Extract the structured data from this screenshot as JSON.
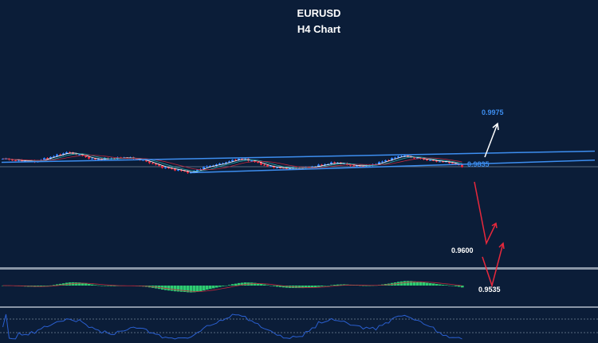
{
  "chart_data": {
    "type": "candlestick",
    "title": "EURUSD",
    "subtitle": "H4 Chart",
    "symbol": "EURUSD",
    "timeframe": "H4",
    "price_path_waypoints": [
      [
        0,
        0.9965
      ],
      [
        4,
        0.9922
      ],
      [
        10,
        0.9889
      ],
      [
        14,
        0.9987
      ],
      [
        20,
        1.0139
      ],
      [
        24,
        1.0074
      ],
      [
        28,
        0.9954
      ],
      [
        33,
        0.9965
      ],
      [
        39,
        0.9998
      ],
      [
        44,
        0.9922
      ],
      [
        50,
        0.9737
      ],
      [
        59,
        0.9585
      ],
      [
        63,
        0.9737
      ],
      [
        68,
        0.9824
      ],
      [
        74,
        0.9965
      ],
      [
        78,
        0.9911
      ],
      [
        83,
        0.9759
      ],
      [
        88,
        0.9705
      ],
      [
        95,
        0.9716
      ],
      [
        103,
        0.9846
      ],
      [
        105,
        0.9857
      ],
      [
        110,
        0.977
      ],
      [
        115,
        0.9781
      ],
      [
        119,
        0.9889
      ],
      [
        125,
        1.0052
      ],
      [
        130,
        0.9976
      ],
      [
        135,
        0.9911
      ],
      [
        140,
        0.9868
      ],
      [
        144,
        0.9759
      ]
    ],
    "horizontal_level": 0.9748,
    "trendlines": [
      {
        "from": [
          0,
          0.9868
        ],
        "to": [
          186,
          1.0172
        ]
      },
      {
        "from": [
          59,
          0.9585
        ],
        "to": [
          186,
          0.9926
        ]
      }
    ],
    "annotations": [
      {
        "text": "0.9975",
        "color": "#3d8ef0"
      },
      {
        "text": "0.9835",
        "color": "#3d8ef0"
      },
      {
        "text": "0.9600",
        "color": "#ffffff"
      },
      {
        "text": "0.9535",
        "color": "#ffffff"
      }
    ],
    "indicators": [
      "moving averages",
      "MACD histogram with signal",
      "RSI"
    ],
    "grid": false,
    "colors": {
      "background": "#0b1d38",
      "up": "#2f7fff",
      "down": "#e8283c",
      "trendline": "#3d8ef0",
      "macd": "#2ecc71",
      "signal": "#c0283c",
      "rsi": "#2a5fd0"
    }
  }
}
